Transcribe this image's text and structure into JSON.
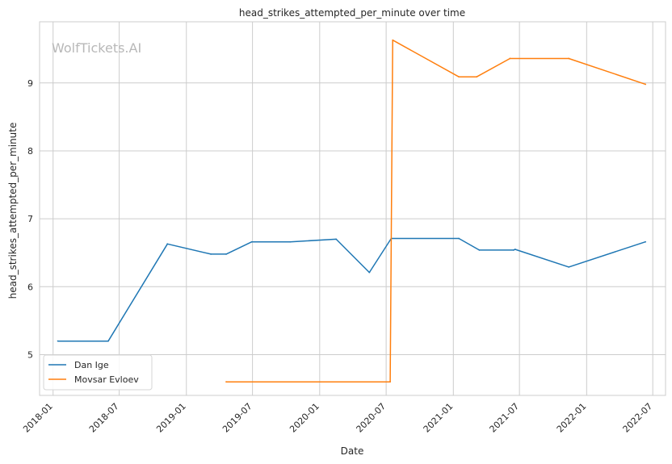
{
  "chart_data": {
    "type": "line",
    "title": "head_strikes_attempted_per_minute over time",
    "xlabel": "Date",
    "ylabel": "head_strikes_attempted_per_minute",
    "watermark": "WolfTickets.AI",
    "x_tick_labels": [
      "2018-01",
      "2018-07",
      "2019-01",
      "2019-07",
      "2020-01",
      "2020-07",
      "2021-01",
      "2021-07",
      "2022-01",
      "2022-07"
    ],
    "y_tick_labels": [
      "5",
      "6",
      "7",
      "8",
      "9"
    ],
    "xlim": [
      "2017-11-25",
      "2022-08-05"
    ],
    "ylim": [
      4.4,
      9.9
    ],
    "grid": true,
    "legend_position": "lower-left",
    "series": [
      {
        "name": "Dan Ige",
        "color": "#1f77b4",
        "points": [
          {
            "x": "2018-01-14",
            "y": 5.2
          },
          {
            "x": "2018-06-01",
            "y": 5.2
          },
          {
            "x": "2018-11-10",
            "y": 6.63
          },
          {
            "x": "2019-03-09",
            "y": 6.48
          },
          {
            "x": "2019-04-20",
            "y": 6.48
          },
          {
            "x": "2019-06-29",
            "y": 6.66
          },
          {
            "x": "2019-10-12",
            "y": 6.66
          },
          {
            "x": "2020-02-15",
            "y": 6.7
          },
          {
            "x": "2020-05-16",
            "y": 6.21
          },
          {
            "x": "2020-07-15",
            "y": 6.71
          },
          {
            "x": "2021-01-16",
            "y": 6.71
          },
          {
            "x": "2021-03-13",
            "y": 6.54
          },
          {
            "x": "2021-06-15",
            "y": 6.54
          },
          {
            "x": "2021-06-19",
            "y": 6.55
          },
          {
            "x": "2021-11-13",
            "y": 6.29
          },
          {
            "x": "2022-06-11",
            "y": 6.66
          }
        ]
      },
      {
        "name": "Movsar Evloev",
        "color": "#ff7f0e",
        "points": [
          {
            "x": "2019-04-20",
            "y": 4.6
          },
          {
            "x": "2020-07-12",
            "y": 4.6
          },
          {
            "x": "2020-07-19",
            "y": 9.63
          },
          {
            "x": "2021-01-16",
            "y": 9.09
          },
          {
            "x": "2021-03-06",
            "y": 9.09
          },
          {
            "x": "2021-06-05",
            "y": 9.36
          },
          {
            "x": "2021-11-13",
            "y": 9.36
          },
          {
            "x": "2022-06-11",
            "y": 8.98
          }
        ]
      }
    ]
  }
}
